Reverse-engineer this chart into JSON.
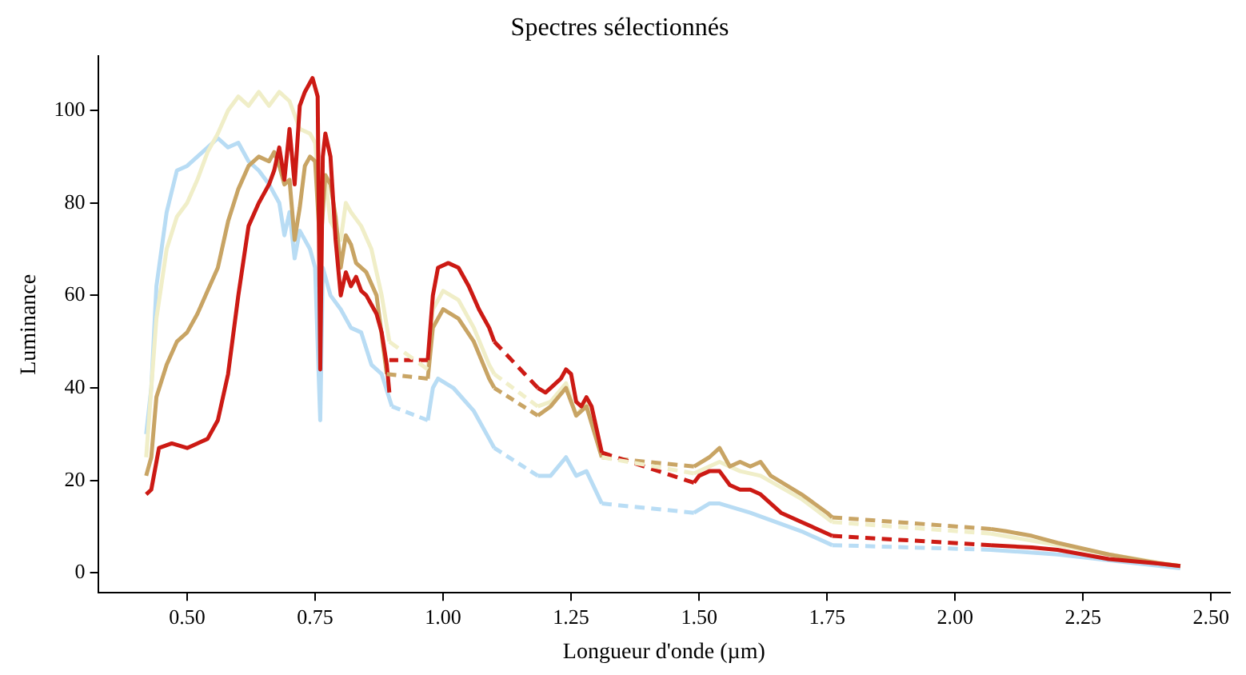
{
  "chart_data": {
    "type": "line",
    "title": "Spectres sélectionnés",
    "xlabel": "Longueur d'onde (µm)",
    "ylabel": "Luminance",
    "xlim": [
      0.326,
      2.537
    ],
    "xticks": [
      {
        "value": 0.5,
        "label": "0.50"
      },
      {
        "value": 0.75,
        "label": "0.75"
      },
      {
        "value": 1.0,
        "label": "1.00"
      },
      {
        "value": 1.25,
        "label": "1.25"
      },
      {
        "value": 1.5,
        "label": "1.50"
      },
      {
        "value": 1.75,
        "label": "1.75"
      },
      {
        "value": 2.0,
        "label": "2.00"
      },
      {
        "value": 2.25,
        "label": "2.25"
      },
      {
        "value": 2.5,
        "label": "2.50"
      }
    ],
    "ylim": [
      -4.3,
      111.7
    ],
    "yticks": [
      0,
      20,
      40,
      60,
      80,
      100
    ],
    "grid": false,
    "legend": false,
    "marker": "none",
    "series": [
      {
        "color": "#b8dcf4",
        "line_style": "solid",
        "x": [
          0.42,
          0.43,
          0.44,
          0.46,
          0.48,
          0.5,
          0.52,
          0.54,
          0.56,
          0.58,
          0.6,
          0.62,
          0.64,
          0.66,
          0.68,
          0.69,
          0.7,
          0.71,
          0.72,
          0.74,
          0.75,
          0.76,
          0.765,
          0.78,
          0.8,
          0.82,
          0.84,
          0.86,
          0.88,
          0.9,
          0.935,
          0.97,
          0.98,
          0.99,
          1.02,
          1.06,
          1.09,
          1.1,
          1.14,
          1.185,
          1.21,
          1.24,
          1.26,
          1.28,
          1.31,
          1.4,
          1.49,
          1.52,
          1.54,
          1.6,
          1.7,
          1.76,
          1.9,
          2.07,
          2.2,
          2.44
        ],
        "values": [
          30,
          40,
          62,
          78,
          87,
          88,
          90,
          92,
          94,
          92,
          93,
          89,
          87,
          84,
          80,
          73,
          78,
          68,
          74,
          70,
          66,
          33,
          66,
          60,
          57,
          53,
          52,
          45,
          43,
          36,
          null,
          33,
          40,
          42,
          40,
          35,
          29,
          27,
          null,
          21,
          21,
          25,
          21,
          22,
          15,
          null,
          13,
          15,
          15,
          13,
          9,
          6,
          null,
          5,
          4,
          1
        ]
      },
      {
        "color": "#f0eec8",
        "line_style": "solid",
        "x": [
          0.42,
          0.44,
          0.46,
          0.48,
          0.5,
          0.52,
          0.54,
          0.56,
          0.58,
          0.6,
          0.62,
          0.64,
          0.66,
          0.68,
          0.7,
          0.72,
          0.74,
          0.75,
          0.76,
          0.77,
          0.78,
          0.8,
          0.81,
          0.82,
          0.84,
          0.86,
          0.88,
          0.895,
          0.935,
          0.97,
          0.98,
          1.0,
          1.03,
          1.06,
          1.09,
          1.1,
          1.14,
          1.185,
          1.21,
          1.24,
          1.26,
          1.28,
          1.31,
          1.4,
          1.49,
          1.52,
          1.54,
          1.58,
          1.62,
          1.7,
          1.76,
          1.9,
          2.07,
          2.2,
          2.3,
          2.44
        ],
        "values": [
          25,
          55,
          70,
          77,
          80,
          85,
          91,
          95,
          100,
          103,
          101,
          104,
          101,
          104,
          102,
          96,
          95,
          93,
          80,
          85,
          76,
          72,
          80,
          78,
          75,
          70,
          60,
          50,
          null,
          44,
          57,
          61,
          59,
          53,
          45,
          43,
          null,
          36,
          37,
          41,
          34,
          37,
          25,
          null,
          21.5,
          23,
          24,
          22,
          21,
          16,
          11,
          null,
          8.5,
          6,
          4,
          1.5
        ]
      },
      {
        "color": "#c8a464",
        "line_style": "solid",
        "x": [
          0.42,
          0.43,
          0.44,
          0.46,
          0.48,
          0.5,
          0.52,
          0.54,
          0.56,
          0.58,
          0.6,
          0.62,
          0.64,
          0.66,
          0.67,
          0.68,
          0.69,
          0.7,
          0.71,
          0.72,
          0.73,
          0.74,
          0.75,
          0.76,
          0.77,
          0.78,
          0.79,
          0.8,
          0.81,
          0.82,
          0.83,
          0.85,
          0.87,
          0.89,
          0.93,
          0.97,
          0.98,
          1.0,
          1.03,
          1.06,
          1.09,
          1.1,
          1.14,
          1.185,
          1.21,
          1.24,
          1.26,
          1.28,
          1.31,
          1.4,
          1.49,
          1.52,
          1.54,
          1.56,
          1.58,
          1.6,
          1.62,
          1.64,
          1.7,
          1.75,
          1.76,
          1.9,
          2.07,
          2.1,
          2.15,
          2.2,
          2.3,
          2.4,
          2.44
        ],
        "values": [
          21,
          25,
          38,
          45,
          50,
          52,
          56,
          61,
          66,
          76,
          83,
          88,
          90,
          89,
          91,
          88,
          84,
          85,
          72,
          79,
          88,
          90,
          89,
          70,
          86,
          84,
          77,
          66,
          73,
          71,
          67,
          65,
          60,
          43,
          null,
          42,
          53,
          57,
          55,
          50,
          42,
          40,
          null,
          34,
          36,
          40,
          34,
          36,
          25,
          null,
          23,
          25,
          27,
          23,
          24,
          23,
          24,
          21,
          17,
          13,
          12,
          null,
          9.5,
          9,
          8,
          6.5,
          4,
          2,
          1.5
        ]
      },
      {
        "color": "#cc1a14",
        "line_style": "solid",
        "x": [
          0.42,
          0.43,
          0.445,
          0.47,
          0.5,
          0.52,
          0.54,
          0.56,
          0.58,
          0.6,
          0.62,
          0.64,
          0.65,
          0.66,
          0.67,
          0.68,
          0.69,
          0.7,
          0.71,
          0.72,
          0.73,
          0.745,
          0.755,
          0.76,
          0.765,
          0.77,
          0.78,
          0.79,
          0.8,
          0.81,
          0.82,
          0.83,
          0.84,
          0.85,
          0.86,
          0.87,
          0.88,
          0.89,
          0.895,
          0.93,
          0.97,
          0.98,
          0.99,
          1.01,
          1.03,
          1.05,
          1.07,
          1.09,
          1.1,
          1.14,
          1.185,
          1.2,
          1.21,
          1.23,
          1.24,
          1.25,
          1.26,
          1.27,
          1.28,
          1.29,
          1.31,
          1.4,
          1.49,
          1.5,
          1.52,
          1.54,
          1.56,
          1.58,
          1.6,
          1.62,
          1.64,
          1.66,
          1.7,
          1.74,
          1.76,
          1.9,
          2.07,
          2.15,
          2.2,
          2.3,
          2.4,
          2.44
        ],
        "values": [
          17,
          18,
          27,
          28,
          27,
          28,
          29,
          33,
          43,
          60,
          75,
          80,
          82,
          84,
          87,
          92,
          85,
          96,
          84,
          101,
          104,
          107,
          103,
          44,
          90,
          95,
          90,
          72,
          60,
          65,
          62,
          64,
          61,
          60,
          58,
          56,
          52,
          45,
          39,
          null,
          46,
          60,
          66,
          67,
          66,
          62,
          57,
          53,
          50,
          null,
          40,
          39,
          40,
          42,
          44,
          43,
          37,
          36,
          38,
          36,
          26,
          null,
          19.5,
          21,
          22,
          22,
          19,
          18,
          18,
          17,
          15,
          13,
          11,
          9,
          8,
          null,
          6,
          5.5,
          5,
          3,
          2,
          1.5
        ]
      },
      {
        "color": "#b9ddf5",
        "line_style": "dashed",
        "x": [
          0.9,
          0.97,
          1.0,
          1.1,
          1.185,
          1.2,
          1.31,
          1.49,
          1.5,
          1.76,
          2.07
        ],
        "values": [
          36,
          33,
          null,
          27,
          21,
          null,
          15,
          13,
          null,
          6,
          5
        ]
      },
      {
        "color": "#c9a565",
        "line_style": "dashed",
        "x": [
          0.89,
          0.97,
          1.0,
          1.1,
          1.185,
          1.2,
          1.31,
          1.49,
          1.5,
          1.76,
          2.07
        ],
        "values": [
          43,
          42,
          null,
          40,
          34,
          null,
          25,
          23,
          null,
          12,
          9.5
        ]
      },
      {
        "color": "#cd1b15",
        "line_style": "dashed",
        "x": [
          0.895,
          0.97,
          1.0,
          1.1,
          1.185,
          1.2,
          1.31,
          1.49,
          1.5,
          1.76,
          2.07
        ],
        "values": [
          46,
          46,
          null,
          50,
          40,
          null,
          26,
          19.5,
          null,
          8,
          6
        ]
      },
      {
        "color": "#f1efc9",
        "line_style": "dashed",
        "x": [
          0.895,
          0.97,
          1.0,
          1.1,
          1.185,
          1.2,
          1.31,
          1.49,
          1.5,
          1.76,
          2.07
        ],
        "values": [
          50,
          44,
          null,
          43,
          36,
          null,
          25,
          21.5,
          null,
          11,
          8.5
        ]
      }
    ]
  }
}
